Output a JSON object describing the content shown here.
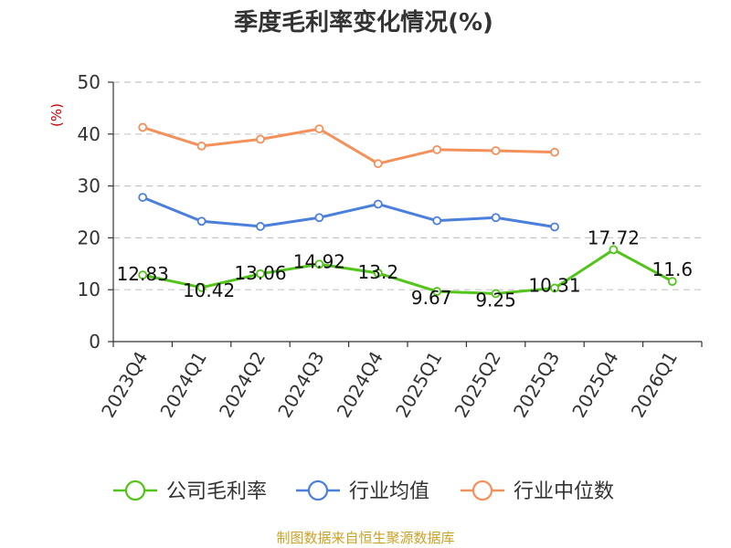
{
  "chart_data": {
    "type": "line",
    "title": "季度毛利率变化情况(%)",
    "ylabel": "(%)",
    "ylim": [
      0,
      50
    ],
    "yticks": [
      0,
      10,
      20,
      30,
      40,
      50
    ],
    "grid": true,
    "legend_position": "bottom",
    "categories": [
      "2023Q4",
      "2024Q1",
      "2024Q2",
      "2024Q3",
      "2024Q4",
      "2025Q1",
      "2025Q2",
      "2025Q3",
      "2025Q4",
      "2026Q1"
    ],
    "series": [
      {
        "name": "公司毛利率",
        "color": "#52c41a",
        "values": [
          12.83,
          10.42,
          13.06,
          14.92,
          13.2,
          9.67,
          9.25,
          10.31,
          17.72,
          11.6
        ],
        "labels": [
          "12.83",
          "10.42",
          "13.06",
          "14.92",
          "13.2",
          "9.67",
          "9.25",
          "10.31",
          "17.72",
          "11.6"
        ]
      },
      {
        "name": "行业均值",
        "color": "#4a7fdb",
        "values": [
          27.8,
          23.2,
          22.2,
          23.9,
          26.5,
          23.3,
          23.9,
          22.1,
          null,
          null
        ]
      },
      {
        "name": "行业中位数",
        "color": "#f4905a",
        "values": [
          41.3,
          37.7,
          39.0,
          41.0,
          34.3,
          37.0,
          36.8,
          36.5,
          null,
          null
        ]
      }
    ],
    "source": "制图数据来自恒生聚源数据库"
  }
}
